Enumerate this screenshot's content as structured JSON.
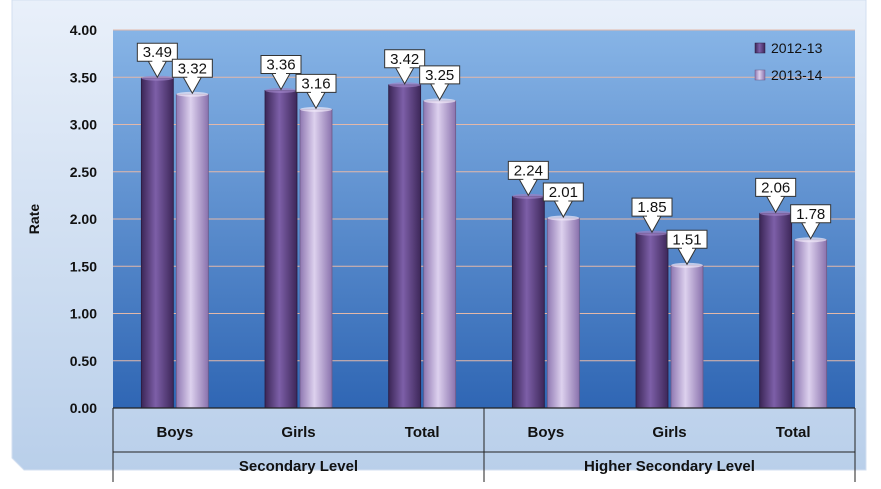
{
  "chart_data": {
    "type": "bar",
    "title": "",
    "ylabel": "Rate",
    "ylim": [
      0,
      4
    ],
    "yticks": [
      "0.00",
      "0.50",
      "1.00",
      "1.50",
      "2.00",
      "2.50",
      "3.00",
      "3.50",
      "4.00"
    ],
    "groups": [
      {
        "label": "Secondary Level",
        "categories": [
          "Boys",
          "Girls",
          "Total"
        ]
      },
      {
        "label": "Higher Secondary Level",
        "categories": [
          "Boys",
          "Girls",
          "Total"
        ]
      }
    ],
    "categories": [
      "Boys",
      "Girls",
      "Total",
      "Boys",
      "Girls",
      "Total"
    ],
    "series": [
      {
        "name": "2012-13",
        "values": [
          3.49,
          3.36,
          3.42,
          2.24,
          1.85,
          2.06
        ],
        "labels": [
          "3.49",
          "3.36",
          "3.42",
          "2.24",
          "1.85",
          "2.06"
        ],
        "color": "#5b3d7f"
      },
      {
        "name": "2013-14",
        "values": [
          3.32,
          3.16,
          3.25,
          2.01,
          1.51,
          1.78
        ],
        "labels": [
          "3.32",
          "3.16",
          "3.25",
          "2.01",
          "1.51",
          "1.78"
        ],
        "color": "#b4a0cf"
      }
    ],
    "grid": true,
    "legend_position": "top-right",
    "colors": {
      "plot_bg_top": "#87b4e6",
      "plot_bg_bottom": "#2f66b4",
      "frame": "#bcd0ea",
      "gridline": "#e3b8a9"
    }
  }
}
